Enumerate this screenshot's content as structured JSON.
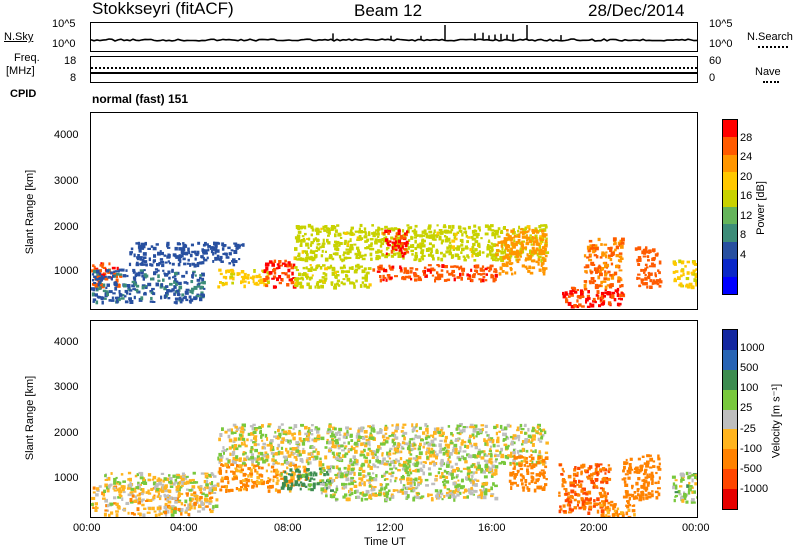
{
  "header": {
    "station": "Stokkseyri (fitACF)",
    "beam": "Beam 12",
    "date": "28/Dec/2014"
  },
  "noise_panel": {
    "left_label": "N.Sky",
    "right_label": "N.Search",
    "left_ticks": [
      "10^5",
      "10^0"
    ],
    "right_ticks": [
      "10^5",
      "10^0"
    ]
  },
  "freq_panel": {
    "left_label_line1": "Freq.",
    "left_label_line2": "[MHz]",
    "right_label": "Nave",
    "left_ticks": [
      "18",
      "8"
    ],
    "right_ticks": [
      "60",
      "0"
    ]
  },
  "cpid": {
    "label": "CPID",
    "value": "normal (fast) 151"
  },
  "xaxis": {
    "label": "Time UT",
    "ticks": [
      "00:00",
      "04:00",
      "08:00",
      "12:00",
      "16:00",
      "20:00",
      "00:00"
    ]
  },
  "yaxis": {
    "label": "Slant Range [km]",
    "ticks": [
      "4000",
      "3000",
      "2000",
      "1000"
    ]
  },
  "power_scale": {
    "title": "Power [dB]",
    "labels": [
      "28",
      "24",
      "20",
      "16",
      "12",
      "8",
      "4"
    ],
    "colors": [
      "#ff0000",
      "#ff5a00",
      "#ff9600",
      "#ffc800",
      "#c8d200",
      "#64b45a",
      "#3c8c78",
      "#2850a0",
      "#0a28c8",
      "#0000ff"
    ]
  },
  "velocity_scale": {
    "title": "Velocity [m s⁻¹]",
    "labels": [
      "1000",
      "500",
      "100",
      "25",
      "-25",
      "-100",
      "-500",
      "-1000"
    ],
    "colors": [
      "#1428a0",
      "#2864b4",
      "#3c8c50",
      "#78c83c",
      "#bebebe",
      "#ffb41e",
      "#ff8200",
      "#ff4600",
      "#e60000"
    ]
  },
  "chart_data": [
    {
      "type": "heatmap",
      "title": "Power [dB]",
      "xlabel": "Time UT",
      "ylabel": "Slant Range [km]",
      "xlim": [
        "00:00",
        "24:00"
      ],
      "ylim": [
        180,
        4600
      ],
      "clim": [
        0,
        32
      ],
      "regions": [
        {
          "t0": 0.0,
          "t1": 1.2,
          "r0": 700,
          "r1": 1250,
          "value": 28
        },
        {
          "t0": 0.0,
          "t1": 4.5,
          "r0": 350,
          "r1": 1100,
          "value": 9
        },
        {
          "t0": 1.5,
          "t1": 6.0,
          "r0": 1200,
          "r1": 1700,
          "value": 8
        },
        {
          "t0": 5.0,
          "t1": 7.0,
          "r0": 700,
          "r1": 1100,
          "value": 20
        },
        {
          "t0": 6.8,
          "t1": 8.0,
          "r0": 700,
          "r1": 1300,
          "value": 29
        },
        {
          "t0": 8.0,
          "t1": 11.0,
          "r0": 700,
          "r1": 1200,
          "value": 18
        },
        {
          "t0": 8.0,
          "t1": 18.0,
          "r0": 1300,
          "r1": 2100,
          "value": 18
        },
        {
          "t0": 11.0,
          "t1": 16.0,
          "r0": 850,
          "r1": 1200,
          "value": 28
        },
        {
          "t0": 11.5,
          "t1": 12.5,
          "r0": 1400,
          "r1": 2000,
          "value": 29
        },
        {
          "t0": 16.0,
          "t1": 18.0,
          "r0": 1000,
          "r1": 2000,
          "value": 24
        },
        {
          "t0": 18.5,
          "t1": 21.0,
          "r0": 250,
          "r1": 700,
          "value": 29
        },
        {
          "t0": 19.5,
          "t1": 21.0,
          "r0": 700,
          "r1": 1800,
          "value": 26
        },
        {
          "t0": 21.5,
          "t1": 22.5,
          "r0": 700,
          "r1": 1600,
          "value": 27
        },
        {
          "t0": 23.0,
          "t1": 24.0,
          "r0": 700,
          "r1": 1300,
          "value": 20
        }
      ]
    },
    {
      "type": "heatmap",
      "title": "Velocity [m s⁻¹]",
      "xlabel": "Time UT",
      "ylabel": "Slant Range [km]",
      "xlim": [
        "00:00",
        "24:00"
      ],
      "ylim": [
        180,
        4600
      ],
      "clim": [
        -1000,
        1000
      ],
      "regions": [
        {
          "t0": 0.0,
          "t1": 5.0,
          "r0": 250,
          "r1": 900,
          "value": -50
        },
        {
          "t0": 0.5,
          "t1": 5.0,
          "r0": 800,
          "r1": 1200,
          "value": 0
        },
        {
          "t0": 5.0,
          "t1": 8.5,
          "r0": 800,
          "r1": 1400,
          "value": -120
        },
        {
          "t0": 7.5,
          "t1": 9.5,
          "r0": 800,
          "r1": 1300,
          "value": 150
        },
        {
          "t0": 5.0,
          "t1": 18.0,
          "r0": 1400,
          "r1": 2300,
          "value": 0
        },
        {
          "t0": 9.0,
          "t1": 16.0,
          "r0": 600,
          "r1": 1400,
          "value": 0
        },
        {
          "t0": 16.5,
          "t1": 18.0,
          "r0": 800,
          "r1": 1600,
          "value": -200
        },
        {
          "t0": 18.5,
          "t1": 20.5,
          "r0": 300,
          "r1": 1400,
          "value": -500
        },
        {
          "t0": 20.0,
          "t1": 21.5,
          "r0": 200,
          "r1": 600,
          "value": -150
        },
        {
          "t0": 21.0,
          "t1": 22.5,
          "r0": 600,
          "r1": 1600,
          "value": -200
        },
        {
          "t0": 23.0,
          "t1": 24.0,
          "r0": 500,
          "r1": 1200,
          "value": 20
        }
      ]
    }
  ]
}
